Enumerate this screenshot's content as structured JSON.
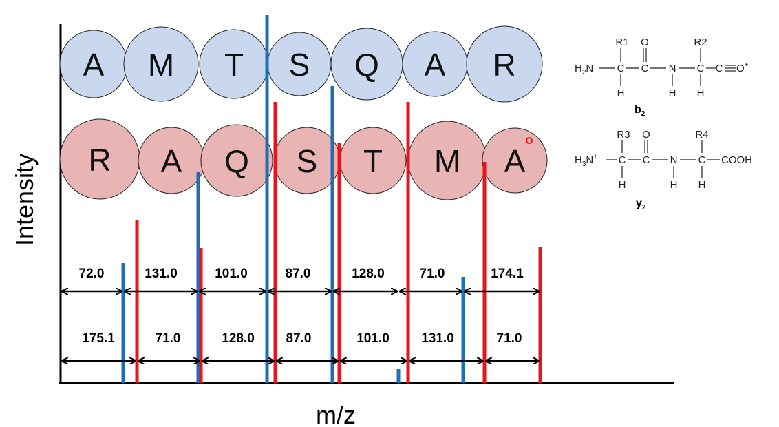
{
  "axes": {
    "x_label": "m/z",
    "y_label": "Intensity"
  },
  "b_series": {
    "residues": [
      "A",
      "M",
      "T",
      "S",
      "Q",
      "A",
      "R"
    ],
    "circle_color": "#c9d8ef",
    "ion_color": "#1f6fb8",
    "mass_differences": [
      "72.0",
      "131.0",
      "101.0",
      "87.0",
      "128.0",
      "71.0",
      "174.1"
    ]
  },
  "y_series": {
    "residues": [
      "R",
      "A",
      "Q",
      "S",
      "T",
      "M",
      "A"
    ],
    "circle_color": "#e8b4b4",
    "ion_color": "#e8141c",
    "mass_differences": [
      "175.1",
      "71.0",
      "128.0",
      "87.0",
      "101.0",
      "131.0",
      "71.0"
    ]
  },
  "structures": {
    "b2": {
      "label": "b",
      "label_subscript": "2",
      "upper": [
        "R1",
        "O",
        "R2"
      ],
      "chain": [
        "H",
        "N",
        "C",
        "C",
        "N",
        "C",
        "C",
        "O",
        "+"
      ],
      "lower": [
        "H",
        "H",
        "H"
      ]
    },
    "y2": {
      "label": "y",
      "label_subscript": "2",
      "upper": [
        "R3",
        "O",
        "R4"
      ],
      "chain": [
        "H",
        "N",
        "C",
        "C",
        "N",
        "C",
        "COOH",
        "+"
      ],
      "lower": [
        "H",
        "H",
        "H"
      ]
    }
  }
}
